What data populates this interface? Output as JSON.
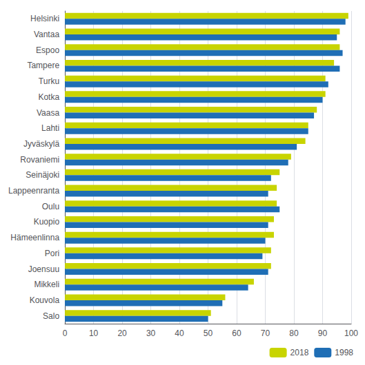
{
  "chart_data": {
    "type": "bar",
    "orientation": "horizontal",
    "categories": [
      "Helsinki",
      "Vantaa",
      "Espoo",
      "Tampere",
      "Turku",
      "Kotka",
      "Vaasa",
      "Lahti",
      "Jyväskylä",
      "Rovaniemi",
      "Seinäjoki",
      "Lappeenranta",
      "Oulu",
      "Kuopio",
      "Hämeenlinna",
      "Pori",
      "Joensuu",
      "Mikkeli",
      "Kouvola",
      "Salo"
    ],
    "series": [
      {
        "name": "2018",
        "color": "#c8d400",
        "values": [
          99,
          96,
          96,
          94,
          91,
          91,
          88,
          85,
          84,
          79,
          75,
          74,
          74,
          73,
          73,
          72,
          72,
          66,
          56,
          51
        ]
      },
      {
        "name": "1998",
        "color": "#1f6eb5",
        "values": [
          98,
          95,
          97,
          96,
          92,
          90,
          87,
          85,
          81,
          78,
          72,
          71,
          75,
          71,
          70,
          69,
          71,
          64,
          55,
          50
        ]
      }
    ],
    "xlim": [
      0,
      100
    ],
    "xticks": [
      0,
      10,
      20,
      30,
      40,
      50,
      60,
      70,
      80,
      90,
      100
    ],
    "grid": true,
    "legend": "lower right"
  }
}
